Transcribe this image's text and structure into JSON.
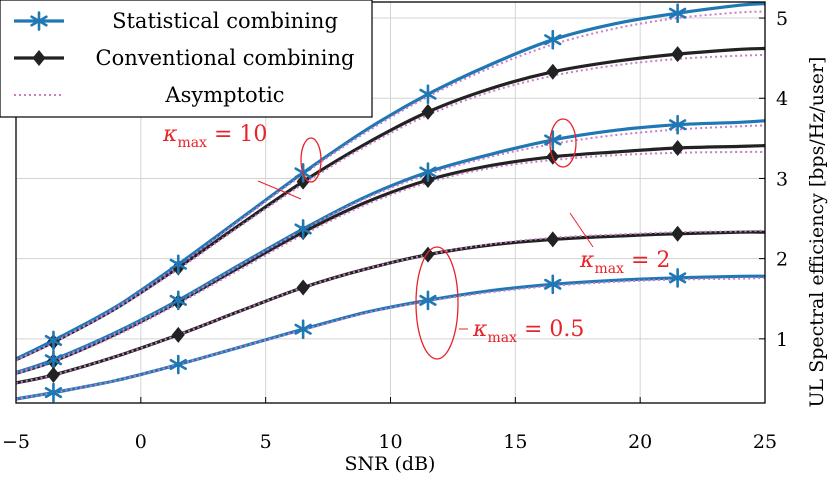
{
  "chart_data": {
    "type": "line",
    "title": "",
    "xlabel": "SNR (dB)",
    "ylabel": "UL Spectral efficiency [bps/Hz/user]",
    "xlim": [
      -5,
      25
    ],
    "ylim": [
      0.2,
      5.2
    ],
    "xticks": [
      -5,
      0,
      5,
      10,
      15,
      20,
      25
    ],
    "xtick_labels": [
      "−5",
      "0",
      "5",
      "10",
      "15",
      "20",
      "25"
    ],
    "yticks": [
      1,
      2,
      3,
      4,
      5
    ],
    "ytick_labels": [
      "1",
      "2",
      "3",
      "4",
      "5"
    ],
    "y_axis_side": "right",
    "grid": true,
    "legend": {
      "placement": "top-left",
      "entries": [
        {
          "label": "Statistical combining",
          "color": "#1f77b4",
          "marker": "star",
          "style": "solid"
        },
        {
          "label": "Conventional combining",
          "color": "#222222",
          "marker": "diamond",
          "style": "solid"
        },
        {
          "label": "Asymptotic",
          "color": "#c77dc7",
          "marker": "none",
          "style": "dotted"
        }
      ]
    },
    "colors": {
      "statistical": "#1f77b4",
      "conventional": "#222222",
      "asymptotic": "#c77dc7",
      "annotation": "#e8232a",
      "grid": "#d3d3d3"
    },
    "marker_x": [
      -3.5,
      1.5,
      6.5,
      11.5,
      16.5,
      21.5
    ],
    "groups": [
      {
        "annotation": "κ_max = 10",
        "statistical": [
          [
            -5,
            0.75
          ],
          [
            -3.5,
            0.98
          ],
          [
            -1,
            1.4
          ],
          [
            1.5,
            1.93
          ],
          [
            4,
            2.5
          ],
          [
            6.5,
            3.07
          ],
          [
            9,
            3.6
          ],
          [
            11.5,
            4.05
          ],
          [
            14,
            4.42
          ],
          [
            16.5,
            4.73
          ],
          [
            19,
            4.93
          ],
          [
            21.5,
            5.06
          ],
          [
            24,
            5.16
          ],
          [
            25,
            5.18
          ]
        ],
        "conventional": [
          [
            -5,
            0.74
          ],
          [
            -3.5,
            0.96
          ],
          [
            -1,
            1.38
          ],
          [
            1.5,
            1.89
          ],
          [
            4,
            2.43
          ],
          [
            6.5,
            2.96
          ],
          [
            9,
            3.43
          ],
          [
            11.5,
            3.83
          ],
          [
            14,
            4.12
          ],
          [
            16.5,
            4.33
          ],
          [
            19,
            4.46
          ],
          [
            21.5,
            4.55
          ],
          [
            24,
            4.61
          ],
          [
            25,
            4.62
          ]
        ],
        "asymptotic_a": [
          [
            -5,
            0.74
          ],
          [
            -3.5,
            0.96
          ],
          [
            -1,
            1.39
          ],
          [
            1.5,
            1.91
          ],
          [
            4,
            2.48
          ],
          [
            6.5,
            3.05
          ],
          [
            9,
            3.57
          ],
          [
            11.5,
            4.02
          ],
          [
            14,
            4.38
          ],
          [
            16.5,
            4.67
          ],
          [
            19,
            4.87
          ],
          [
            21.5,
            5.0
          ],
          [
            24,
            5.07
          ],
          [
            25,
            5.08
          ]
        ],
        "asymptotic_b": [
          [
            -5,
            0.73
          ],
          [
            -3.5,
            0.95
          ],
          [
            -1,
            1.37
          ],
          [
            1.5,
            1.87
          ],
          [
            4,
            2.41
          ],
          [
            6.5,
            2.93
          ],
          [
            9,
            3.4
          ],
          [
            11.5,
            3.79
          ],
          [
            14,
            4.08
          ],
          [
            16.5,
            4.28
          ],
          [
            19,
            4.41
          ],
          [
            21.5,
            4.49
          ],
          [
            24,
            4.53
          ],
          [
            25,
            4.54
          ]
        ]
      },
      {
        "annotation": "κ_max = 2",
        "statistical": [
          [
            -5,
            0.58
          ],
          [
            -3.5,
            0.74
          ],
          [
            -1,
            1.08
          ],
          [
            1.5,
            1.48
          ],
          [
            4,
            1.93
          ],
          [
            6.5,
            2.37
          ],
          [
            9,
            2.77
          ],
          [
            11.5,
            3.08
          ],
          [
            14,
            3.3
          ],
          [
            16.5,
            3.48
          ],
          [
            19,
            3.6
          ],
          [
            21.5,
            3.67
          ],
          [
            24,
            3.7
          ],
          [
            25,
            3.72
          ]
        ],
        "conventional": [
          [
            -5,
            0.57
          ],
          [
            -3.5,
            0.72
          ],
          [
            -1,
            1.06
          ],
          [
            1.5,
            1.46
          ],
          [
            4,
            1.9
          ],
          [
            6.5,
            2.33
          ],
          [
            9,
            2.7
          ],
          [
            11.5,
            2.98
          ],
          [
            14,
            3.16
          ],
          [
            16.5,
            3.27
          ],
          [
            19,
            3.33
          ],
          [
            21.5,
            3.38
          ],
          [
            24,
            3.4
          ],
          [
            25,
            3.41
          ]
        ],
        "asymptotic_a": [
          [
            -5,
            0.58
          ],
          [
            -3.5,
            0.73
          ],
          [
            -1,
            1.07
          ],
          [
            1.5,
            1.47
          ],
          [
            4,
            1.92
          ],
          [
            6.5,
            2.36
          ],
          [
            9,
            2.75
          ],
          [
            11.5,
            3.05
          ],
          [
            14,
            3.27
          ],
          [
            16.5,
            3.43
          ],
          [
            19,
            3.54
          ],
          [
            21.5,
            3.61
          ],
          [
            24,
            3.65
          ],
          [
            25,
            3.66
          ]
        ],
        "asymptotic_b": [
          [
            -5,
            0.56
          ],
          [
            -3.5,
            0.71
          ],
          [
            -1,
            1.04
          ],
          [
            1.5,
            1.44
          ],
          [
            4,
            1.87
          ],
          [
            6.5,
            2.3
          ],
          [
            9,
            2.67
          ],
          [
            11.5,
            2.95
          ],
          [
            14,
            3.13
          ],
          [
            16.5,
            3.23
          ],
          [
            19,
            3.29
          ],
          [
            21.5,
            3.32
          ],
          [
            24,
            3.33
          ],
          [
            25,
            3.33
          ]
        ]
      },
      {
        "annotation": "κ_max = 0.5",
        "statistical": [
          [
            -5,
            0.25
          ],
          [
            -3.5,
            0.33
          ],
          [
            -1,
            0.48
          ],
          [
            1.5,
            0.68
          ],
          [
            4,
            0.9
          ],
          [
            6.5,
            1.12
          ],
          [
            9,
            1.33
          ],
          [
            11.5,
            1.48
          ],
          [
            14,
            1.6
          ],
          [
            16.5,
            1.68
          ],
          [
            19,
            1.73
          ],
          [
            21.5,
            1.76
          ],
          [
            24,
            1.78
          ],
          [
            25,
            1.78
          ]
        ],
        "conventional": [
          [
            -5,
            0.45
          ],
          [
            -3.5,
            0.55
          ],
          [
            -1,
            0.78
          ],
          [
            1.5,
            1.05
          ],
          [
            4,
            1.35
          ],
          [
            6.5,
            1.64
          ],
          [
            9,
            1.87
          ],
          [
            11.5,
            2.05
          ],
          [
            14,
            2.17
          ],
          [
            16.5,
            2.24
          ],
          [
            19,
            2.28
          ],
          [
            21.5,
            2.31
          ],
          [
            24,
            2.33
          ],
          [
            25,
            2.33
          ]
        ],
        "asymptotic_a": [
          [
            -5,
            0.25
          ],
          [
            -3.5,
            0.33
          ],
          [
            -1,
            0.48
          ],
          [
            1.5,
            0.68
          ],
          [
            4,
            0.9
          ],
          [
            6.5,
            1.11
          ],
          [
            9,
            1.32
          ],
          [
            11.5,
            1.47
          ],
          [
            14,
            1.58
          ],
          [
            16.5,
            1.66
          ],
          [
            19,
            1.71
          ],
          [
            21.5,
            1.74
          ],
          [
            24,
            1.75
          ],
          [
            25,
            1.76
          ]
        ],
        "asymptotic_b": [
          [
            -5,
            0.45
          ],
          [
            -3.5,
            0.55
          ],
          [
            -1,
            0.78
          ],
          [
            1.5,
            1.05
          ],
          [
            4,
            1.35
          ],
          [
            6.5,
            1.64
          ],
          [
            9,
            1.87
          ],
          [
            11.5,
            2.05
          ],
          [
            14,
            2.18
          ],
          [
            16.5,
            2.26
          ],
          [
            19,
            2.3
          ],
          [
            21.5,
            2.33
          ],
          [
            24,
            2.34
          ],
          [
            25,
            2.35
          ]
        ]
      }
    ]
  }
}
